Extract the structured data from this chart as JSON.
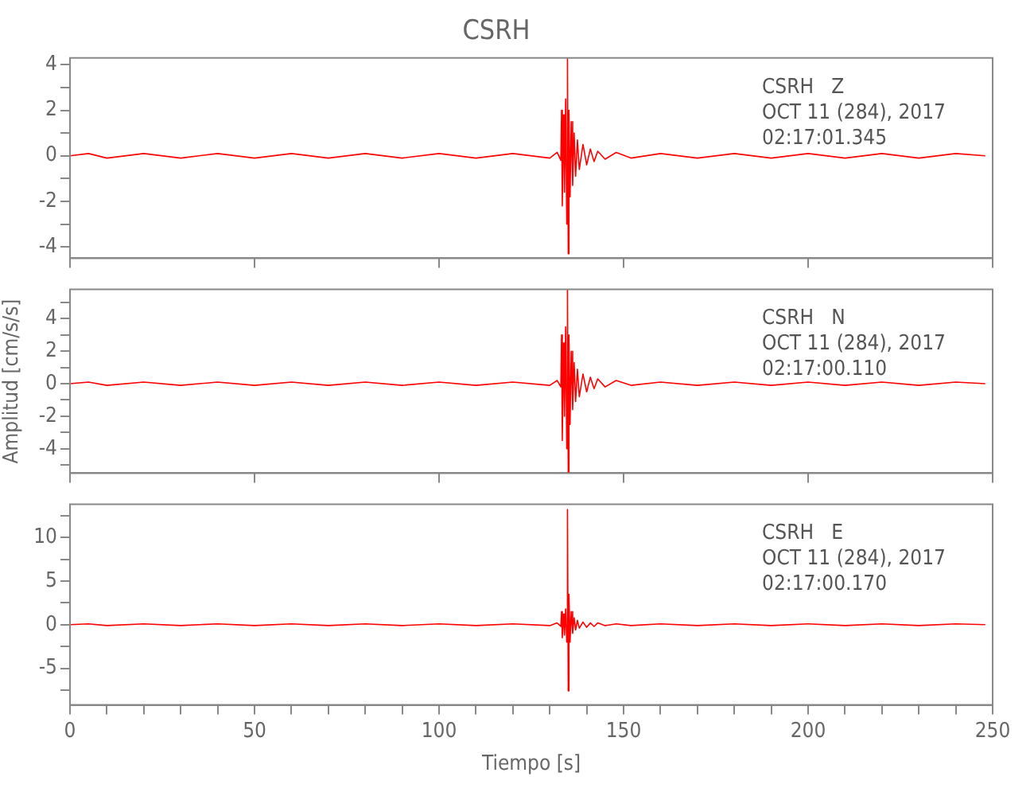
{
  "chart_data": [
    {
      "type": "line",
      "title": "CSRH",
      "x": [
        0,
        5,
        10,
        20,
        30,
        40,
        50,
        60,
        70,
        80,
        90,
        100,
        110,
        120,
        130,
        132,
        133,
        133.2,
        133.4,
        133.7,
        134,
        134.3,
        134.6,
        134.8,
        135,
        135.2,
        135.5,
        135.8,
        136.2,
        136.6,
        137,
        137.5,
        138,
        139,
        140,
        141,
        142,
        143,
        145,
        148,
        152,
        160,
        170,
        180,
        190,
        200,
        210,
        220,
        230,
        240,
        248
      ],
      "series": [
        {
          "color": "#ff0000",
          "values": [
            0,
            0.1,
            -0.1,
            0.1,
            -0.1,
            0.1,
            -0.1,
            0.1,
            -0.1,
            0.1,
            -0.1,
            0.1,
            -0.1,
            0.1,
            -0.1,
            0.15,
            -0.2,
            2.0,
            -2.2,
            1.8,
            -1.6,
            2.5,
            -3.0,
            4.3,
            -4.3,
            2.0,
            -1.8,
            1.5,
            -1.3,
            1.0,
            -0.9,
            0.7,
            -0.6,
            0.5,
            -0.4,
            0.3,
            -0.25,
            0.2,
            -0.15,
            0.15,
            -0.1,
            0.1,
            -0.1,
            0.1,
            -0.1,
            0.1,
            -0.1,
            0.1,
            -0.1,
            0.1,
            0
          ]
        }
      ],
      "xlim": [
        0,
        250
      ],
      "xticks": [
        0,
        50,
        100,
        150,
        200,
        250
      ],
      "ylim": [
        -4.5,
        4.3
      ],
      "yticks": [
        -4,
        {
          "value": -3,
          "label": null
        },
        -2,
        {
          "value": -1,
          "label": null
        },
        0,
        {
          "value": 1,
          "label": null
        },
        2,
        {
          "value": 3,
          "label": null
        },
        4
      ],
      "tick_labels": "y",
      "grid": false,
      "legend": false,
      "marker": "none",
      "line_style": "solid",
      "annotations": [
        "CSRH   Z",
        "OCT 11 (284), 2017",
        "02:17:01.345"
      ]
    },
    {
      "type": "line",
      "ylabel": "Amplitud [cm/s/s]",
      "x": [
        0,
        5,
        10,
        20,
        30,
        40,
        50,
        60,
        70,
        80,
        90,
        100,
        110,
        120,
        130,
        132,
        133,
        133.2,
        133.4,
        133.7,
        134,
        134.3,
        134.6,
        134.8,
        135,
        135.2,
        135.5,
        135.8,
        136.2,
        136.6,
        137,
        137.5,
        138,
        139,
        140,
        141,
        142,
        143,
        145,
        148,
        152,
        160,
        170,
        180,
        190,
        200,
        210,
        220,
        230,
        240,
        248
      ],
      "series": [
        {
          "color": "#ff0000",
          "values": [
            0,
            0.1,
            -0.1,
            0.1,
            -0.1,
            0.1,
            -0.1,
            0.1,
            -0.1,
            0.1,
            -0.1,
            0.1,
            -0.1,
            0.1,
            -0.1,
            0.2,
            -0.2,
            3.0,
            -3.5,
            2.5,
            -2.0,
            3.5,
            -4.0,
            5.8,
            -5.5,
            3.0,
            -2.5,
            2.0,
            -1.6,
            1.3,
            -1.1,
            0.9,
            -0.8,
            0.6,
            -0.5,
            0.4,
            -0.3,
            0.3,
            -0.2,
            0.2,
            -0.1,
            0.1,
            -0.1,
            0.1,
            -0.1,
            0.1,
            -0.1,
            0.1,
            -0.1,
            0.1,
            0
          ]
        }
      ],
      "xlim": [
        0,
        250
      ],
      "xticks": [
        0,
        50,
        100,
        150,
        200,
        250
      ],
      "ylim": [
        -5.5,
        5.8
      ],
      "yticks": [
        {
          "value": -5,
          "label": null
        },
        -4,
        {
          "value": -3,
          "label": null
        },
        -2,
        {
          "value": -1,
          "label": null
        },
        0,
        {
          "value": 1,
          "label": null
        },
        2,
        {
          "value": 3,
          "label": null
        },
        4,
        {
          "value": 5,
          "label": null
        }
      ],
      "tick_labels": "y",
      "grid": false,
      "legend": false,
      "marker": "none",
      "line_style": "solid",
      "annotations": [
        "CSRH   N",
        "OCT 11 (284), 2017",
        "02:17:00.110"
      ]
    },
    {
      "type": "line",
      "xlabel": "Tiempo [s]",
      "x": [
        0,
        5,
        10,
        20,
        30,
        40,
        50,
        60,
        70,
        80,
        90,
        100,
        110,
        120,
        130,
        132,
        133,
        133.2,
        133.4,
        133.7,
        134,
        134.3,
        134.6,
        134.8,
        135,
        135.2,
        135.5,
        135.8,
        136.2,
        136.6,
        137,
        137.5,
        138,
        139,
        140,
        141,
        142,
        143,
        145,
        148,
        152,
        160,
        170,
        180,
        190,
        200,
        210,
        220,
        230,
        240,
        248
      ],
      "series": [
        {
          "color": "#ff0000",
          "values": [
            0,
            0.1,
            -0.1,
            0.1,
            -0.1,
            0.1,
            -0.1,
            0.1,
            -0.1,
            0.1,
            -0.1,
            0.1,
            -0.1,
            0.1,
            -0.1,
            0.2,
            -0.2,
            1.5,
            -1.5,
            1.2,
            -1.2,
            1.8,
            -2.0,
            13.2,
            -7.6,
            3.5,
            -2.0,
            1.5,
            -1.0,
            0.8,
            -0.6,
            0.5,
            -0.4,
            0.3,
            -0.3,
            0.2,
            -0.2,
            0.2,
            -0.1,
            0.1,
            -0.1,
            0.1,
            -0.1,
            0.1,
            -0.1,
            0.1,
            -0.1,
            0.1,
            -0.1,
            0.1,
            0
          ]
        }
      ],
      "xlim": [
        0,
        250
      ],
      "xticks": [
        0,
        {
          "value": 10,
          "label": null
        },
        {
          "value": 20,
          "label": null
        },
        {
          "value": 30,
          "label": null
        },
        {
          "value": 40,
          "label": null
        },
        50,
        {
          "value": 60,
          "label": null
        },
        {
          "value": 70,
          "label": null
        },
        {
          "value": 80,
          "label": null
        },
        {
          "value": 90,
          "label": null
        },
        100,
        {
          "value": 110,
          "label": null
        },
        {
          "value": 120,
          "label": null
        },
        {
          "value": 130,
          "label": null
        },
        {
          "value": 140,
          "label": null
        },
        150,
        {
          "value": 160,
          "label": null
        },
        {
          "value": 170,
          "label": null
        },
        {
          "value": 180,
          "label": null
        },
        {
          "value": 190,
          "label": null
        },
        200,
        {
          "value": 210,
          "label": null
        },
        {
          "value": 220,
          "label": null
        },
        {
          "value": 230,
          "label": null
        },
        {
          "value": 240,
          "label": null
        },
        250
      ],
      "ylim": [
        -9.2,
        13.8
      ],
      "yticks": [
        {
          "value": -7.5,
          "label": null
        },
        -5,
        {
          "value": -2.5,
          "label": null
        },
        0,
        {
          "value": 2.5,
          "label": null
        },
        5,
        {
          "value": 7.5,
          "label": null
        },
        10,
        {
          "value": 12.5,
          "label": null
        }
      ],
      "grid": false,
      "legend": false,
      "marker": "none",
      "line_style": "solid",
      "annotations": [
        "CSRH   E",
        "OCT 11 (284), 2017",
        "02:17:00.170"
      ]
    }
  ]
}
